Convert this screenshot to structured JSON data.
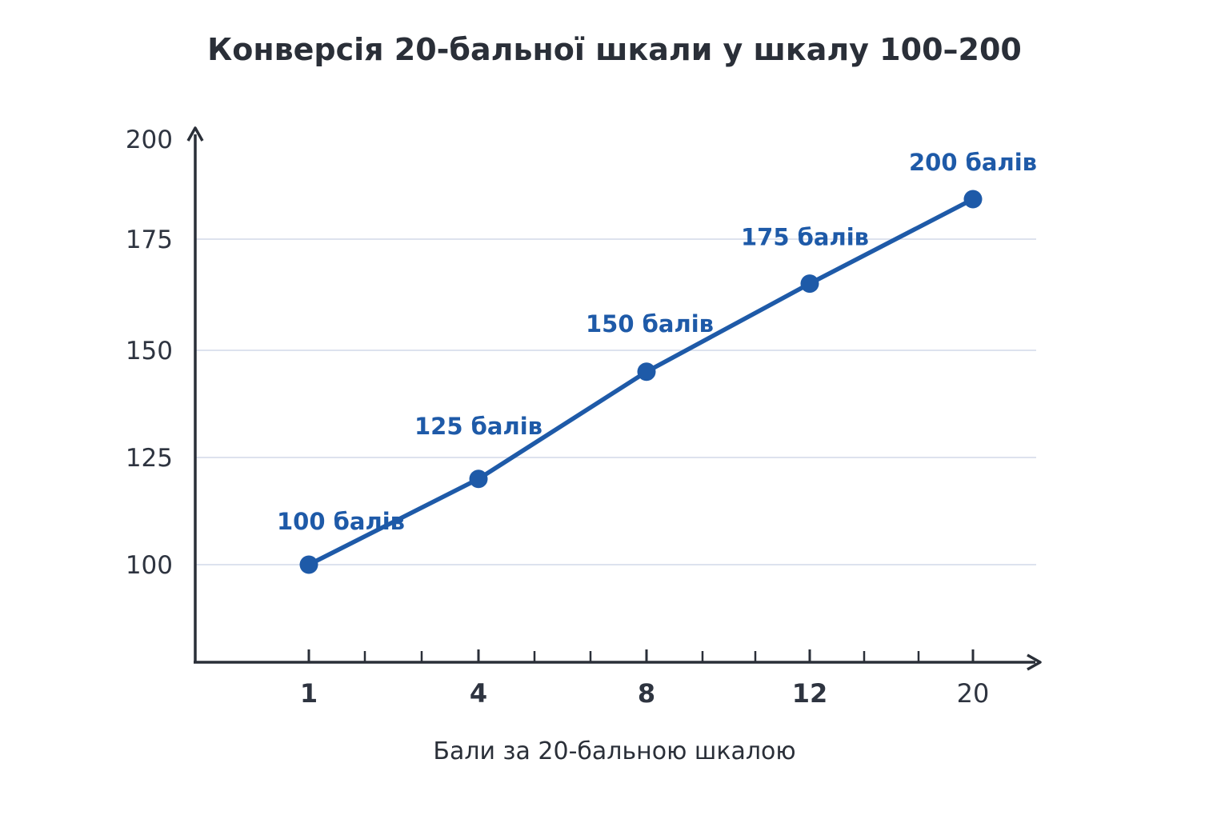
{
  "chart_data": {
    "type": "line",
    "title": "Конверсія 20-бальної шкали у шкалу 100–200",
    "xlabel": "Бали за 20-бальною шкалою",
    "ylabel": "",
    "ylim": [
      100,
      200
    ],
    "y_ticks": [
      "100",
      "125",
      "150",
      "175",
      "200"
    ],
    "grid": true,
    "x": [
      1,
      4,
      8,
      12,
      20
    ],
    "x_tick_labels": [
      "1",
      "4",
      "8",
      "12",
      "20"
    ],
    "series": [
      {
        "values": [
          100,
          120,
          145,
          165,
          185
        ],
        "color": "#1e5aa8"
      }
    ],
    "data_labels": [
      "100 балів",
      "125 балів",
      "150 балів",
      "175 балів",
      "200 балів"
    ]
  }
}
